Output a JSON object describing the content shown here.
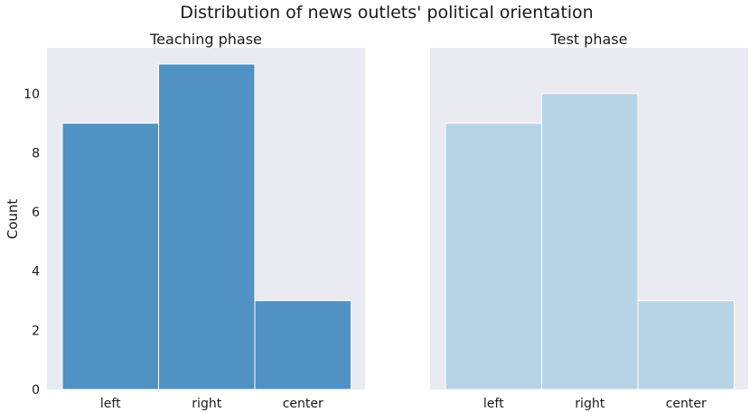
{
  "figure": {
    "title": "Distribution of news outlets' political orientation"
  },
  "chart_data": [
    {
      "type": "bar",
      "title": "Teaching phase",
      "xlabel": "",
      "ylabel": "Count",
      "categories": [
        "left",
        "right",
        "center"
      ],
      "values": [
        9,
        11,
        3
      ],
      "ylim": [
        0,
        11.55
      ],
      "yticks": [
        0,
        2,
        4,
        6,
        8,
        10
      ],
      "grid": false,
      "color": "#4f92c3",
      "background": "#eaeaf2"
    },
    {
      "type": "bar",
      "title": "Test phase",
      "xlabel": "",
      "ylabel": "",
      "categories": [
        "left",
        "right",
        "center"
      ],
      "values": [
        9,
        10,
        3
      ],
      "ylim": [
        0,
        11.55
      ],
      "yticks": [],
      "grid": false,
      "color": "#b7d4e7",
      "background": "#eaeaf2"
    }
  ]
}
